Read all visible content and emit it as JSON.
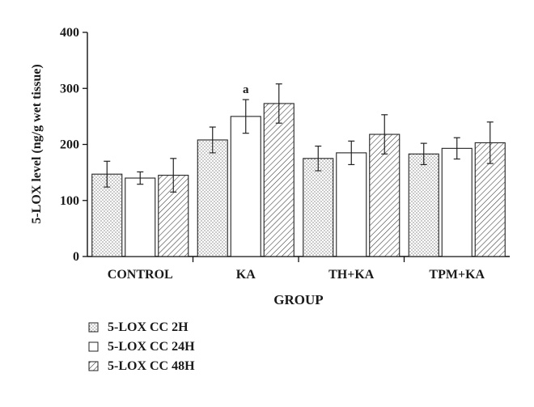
{
  "chart_data": {
    "type": "bar",
    "xlabel": "GROUP",
    "ylabel": "5-LOX level (ng/g wet tissue)",
    "ylim": [
      0,
      400
    ],
    "yticks": [
      0,
      100,
      200,
      300,
      400
    ],
    "grid": false,
    "legend_position": "bottom-left",
    "categories": [
      "CONTROL",
      "KA",
      "TH+KA",
      "TPM+KA"
    ],
    "series": [
      {
        "name": "5-LOX CC 2H",
        "pattern": "dots",
        "values": [
          147,
          208,
          175,
          183
        ],
        "errors": [
          23,
          23,
          22,
          19
        ]
      },
      {
        "name": "5-LOX CC 24H",
        "pattern": "plain",
        "values": [
          140,
          250,
          185,
          193
        ],
        "errors": [
          11,
          30,
          21,
          19
        ]
      },
      {
        "name": "5-LOX CC 48H",
        "pattern": "hatch",
        "values": [
          145,
          273,
          218,
          203
        ],
        "errors": [
          30,
          35,
          35,
          37
        ]
      }
    ],
    "annotations": [
      {
        "text": "a",
        "category": "KA",
        "series": "5-LOX CC 24H"
      }
    ]
  }
}
